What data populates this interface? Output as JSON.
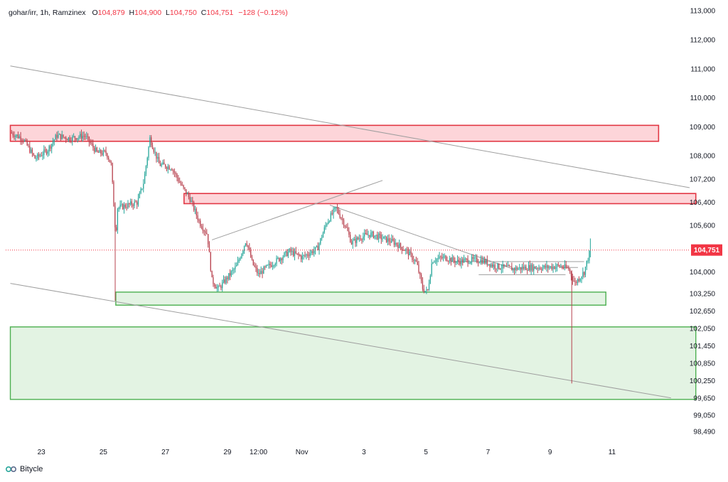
{
  "header": {
    "symbol": "gohar/irr, 1h, Ramzinex",
    "o_label": "O",
    "o_value": "104,879",
    "h_label": "H",
    "h_value": "104,900",
    "l_label": "L",
    "l_value": "104,750",
    "c_label": "C",
    "c_value": "104,751",
    "change": "−128 (−0.12%)"
  },
  "brand": {
    "name": "Bitycle",
    "icon": "bitycle-logo-icon"
  },
  "colors": {
    "up": "#26a69a",
    "down": "#b8424f",
    "resistance": "#e23744",
    "resistance_fill": "#fdd5d9",
    "support": "#4caf50",
    "support_fill": "#e3f3e3",
    "trendline": "#9e9e9e",
    "price_tag": "#f23645",
    "axis_text": "#131722"
  },
  "chart_data": {
    "type": "candlestick",
    "current_price": 104751,
    "current_price_label": "104,751",
    "y_ticks": [
      {
        "value": 113000,
        "label": "113,000"
      },
      {
        "value": 112000,
        "label": "112,000"
      },
      {
        "value": 111000,
        "label": "111,000"
      },
      {
        "value": 110000,
        "label": "110,000"
      },
      {
        "value": 109000,
        "label": "109,000"
      },
      {
        "value": 108000,
        "label": "108,000"
      },
      {
        "value": 107200,
        "label": "107,200"
      },
      {
        "value": 106400,
        "label": "106,400"
      },
      {
        "value": 105600,
        "label": "105,600"
      },
      {
        "value": 104000,
        "label": "104,000"
      },
      {
        "value": 103250,
        "label": "103,250"
      },
      {
        "value": 102650,
        "label": "102,650"
      },
      {
        "value": 102050,
        "label": "102,050"
      },
      {
        "value": 101450,
        "label": "101,450"
      },
      {
        "value": 100850,
        "label": "100,850"
      },
      {
        "value": 100250,
        "label": "100,250"
      },
      {
        "value": 99650,
        "label": "99,650"
      },
      {
        "value": 99050,
        "label": "99,050"
      },
      {
        "value": 98490,
        "label": "98,490"
      }
    ],
    "x_ticks": [
      {
        "t": 23,
        "label": "23"
      },
      {
        "t": 25,
        "label": "25"
      },
      {
        "t": 27,
        "label": "27"
      },
      {
        "t": 29,
        "label": "29"
      },
      {
        "t": 30,
        "label": "12:00"
      },
      {
        "t": 31.4,
        "label": "Nov"
      },
      {
        "t": 33.4,
        "label": "3"
      },
      {
        "t": 35.4,
        "label": "5"
      },
      {
        "t": 37.4,
        "label": "7"
      },
      {
        "t": 39.4,
        "label": "9"
      },
      {
        "t": 41.4,
        "label": "11"
      }
    ],
    "resistance_zones": [
      {
        "t1": 22.0,
        "t2": 42.9,
        "p1": 108500,
        "p2": 109050
      },
      {
        "t1": 27.6,
        "t2": 44.1,
        "p1": 106350,
        "p2": 106700
      }
    ],
    "support_zones": [
      {
        "t1": 25.4,
        "t2": 41.2,
        "p1": 102850,
        "p2": 103300
      },
      {
        "t1": 22.0,
        "t2": 44.1,
        "p1": 99600,
        "p2": 102100
      }
    ],
    "trendlines": [
      {
        "t1": 22.0,
        "p1": 111100,
        "t2": 43.9,
        "p2": 106900
      },
      {
        "t1": 22.0,
        "p1": 103600,
        "t2": 43.3,
        "p2": 99650
      },
      {
        "t1": 28.5,
        "p1": 105100,
        "t2": 34.0,
        "p2": 107150
      },
      {
        "t1": 32.3,
        "p1": 106300,
        "t2": 38.2,
        "p2": 104100
      },
      {
        "t1": 36.2,
        "p1": 104350,
        "t2": 40.5,
        "p2": 104350
      },
      {
        "t1": 37.1,
        "p1": 103900,
        "t2": 39.9,
        "p2": 103900
      },
      {
        "t1": 39.7,
        "p1": 104150,
        "t2": 40.3,
        "p2": 104150
      }
    ],
    "close_path": [
      [
        22.0,
        108800
      ],
      [
        22.4,
        108600
      ],
      [
        22.8,
        107900
      ],
      [
        23.2,
        108200
      ],
      [
        23.5,
        108700
      ],
      [
        23.9,
        108600
      ],
      [
        24.4,
        108700
      ],
      [
        24.8,
        108100
      ],
      [
        25.1,
        108100
      ],
      [
        25.25,
        107700
      ],
      [
        25.4,
        105200
      ],
      [
        25.45,
        106200
      ],
      [
        25.8,
        106300
      ],
      [
        26.1,
        106400
      ],
      [
        26.3,
        107100
      ],
      [
        26.5,
        108600
      ],
      [
        26.8,
        107700
      ],
      [
        27.2,
        107600
      ],
      [
        27.5,
        107000
      ],
      [
        27.8,
        106500
      ],
      [
        28.1,
        105700
      ],
      [
        28.35,
        105300
      ],
      [
        28.5,
        103700
      ],
      [
        28.7,
        103400
      ],
      [
        29.0,
        103800
      ],
      [
        29.3,
        104200
      ],
      [
        29.6,
        105100
      ],
      [
        29.8,
        104300
      ],
      [
        30.0,
        103900
      ],
      [
        30.2,
        104100
      ],
      [
        30.6,
        104400
      ],
      [
        31.0,
        104700
      ],
      [
        31.4,
        104500
      ],
      [
        31.9,
        104800
      ],
      [
        32.2,
        105700
      ],
      [
        32.5,
        106200
      ],
      [
        32.8,
        105600
      ],
      [
        33.0,
        105000
      ],
      [
        33.3,
        105200
      ],
      [
        33.6,
        105300
      ],
      [
        33.9,
        105200
      ],
      [
        34.4,
        105000
      ],
      [
        34.8,
        104700
      ],
      [
        35.1,
        104300
      ],
      [
        35.3,
        103400
      ],
      [
        35.45,
        103300
      ],
      [
        35.6,
        104400
      ],
      [
        36.0,
        104500
      ],
      [
        36.4,
        104350
      ],
      [
        36.8,
        104400
      ],
      [
        37.2,
        104400
      ],
      [
        37.6,
        104200
      ],
      [
        38.2,
        104100
      ],
      [
        38.7,
        104150
      ],
      [
        39.3,
        104150
      ],
      [
        39.7,
        104200
      ],
      [
        40.0,
        104100
      ],
      [
        40.2,
        103600
      ],
      [
        40.5,
        104000
      ],
      [
        40.7,
        104751
      ]
    ],
    "wick_spike": {
      "t": 40.1,
      "high": 104050,
      "low": 100150
    },
    "last_candle_high": 104900,
    "x_range": [
      21.85,
      43.9
    ],
    "y_range": [
      98100,
      113250
    ]
  }
}
